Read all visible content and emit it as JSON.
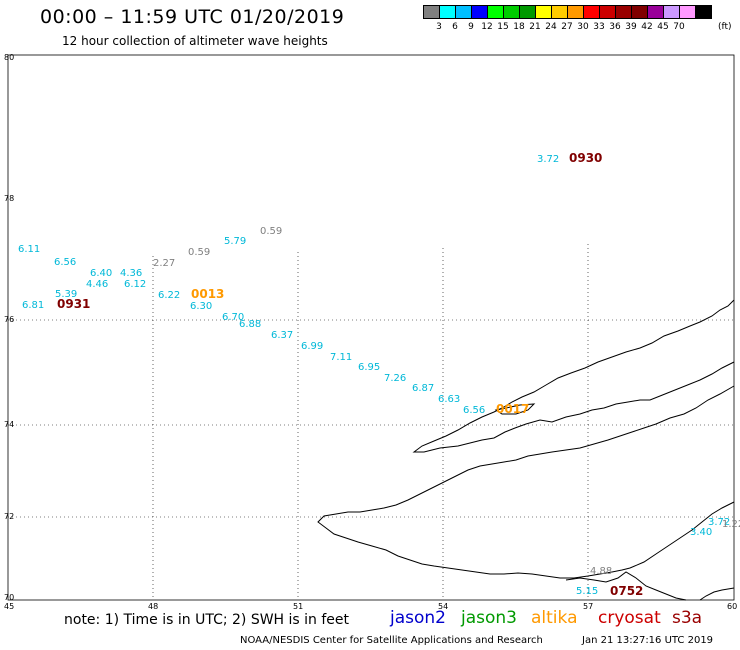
{
  "header": {
    "title": "00:00 – 11:59 UTC 01/20/2019",
    "subtitle": "12 hour collection of altimeter wave heights"
  },
  "color_scale": {
    "unit": "(ft)",
    "colors": [
      "#808080",
      "#00ffff",
      "#00bfff",
      "#0000ff",
      "#00ff00",
      "#00cc00",
      "#009900",
      "#ffff00",
      "#ffcc00",
      "#ff9900",
      "#ff0000",
      "#cc0000",
      "#990000",
      "#800000",
      "#990099",
      "#cc99ff",
      "#ff99ff",
      "#000000"
    ],
    "ticks": [
      "3",
      "6",
      "9",
      "12",
      "15",
      "18",
      "21",
      "24",
      "27",
      "30",
      "33",
      "36",
      "39",
      "42",
      "45",
      "70"
    ]
  },
  "axes": {
    "lat_labels": [
      "80",
      "78",
      "76",
      "74",
      "72",
      "70"
    ],
    "lon_labels": [
      "45",
      "48",
      "51",
      "54",
      "57",
      "60"
    ]
  },
  "observations": [
    {
      "text": "3.72",
      "color": "#00b8d8"
    },
    {
      "text": "0930",
      "color": "#800000"
    },
    {
      "text": "0.59",
      "color": "#808080"
    },
    {
      "text": "5.79",
      "color": "#00b8d8"
    },
    {
      "text": "0.59",
      "color": "#808080"
    },
    {
      "text": "6.11",
      "color": "#00b8d8"
    },
    {
      "text": "2.27",
      "color": "#808080"
    },
    {
      "text": "6.56",
      "color": "#00b8d8"
    },
    {
      "text": "6.40",
      "color": "#00b8d8"
    },
    {
      "text": "4.36",
      "color": "#00b8d8"
    },
    {
      "text": "4.46",
      "color": "#00b8d8"
    },
    {
      "text": "6.12",
      "color": "#00b8d8"
    },
    {
      "text": "5.39",
      "color": "#00b8d8"
    },
    {
      "text": "6.22",
      "color": "#00b8d8"
    },
    {
      "text": "0013",
      "color": "#ff9900"
    },
    {
      "text": "6.81",
      "color": "#00b8d8"
    },
    {
      "text": "0931",
      "color": "#800000"
    },
    {
      "text": "6.30",
      "color": "#00b8d8"
    },
    {
      "text": "6.70",
      "color": "#00b8d8"
    },
    {
      "text": "6.88",
      "color": "#00b8d8"
    },
    {
      "text": "6.37",
      "color": "#00b8d8"
    },
    {
      "text": "6.99",
      "color": "#00b8d8"
    },
    {
      "text": "7.11",
      "color": "#00b8d8"
    },
    {
      "text": "6.95",
      "color": "#00b8d8"
    },
    {
      "text": "7.26",
      "color": "#00b8d8"
    },
    {
      "text": "6.87",
      "color": "#00b8d8"
    },
    {
      "text": "6.63",
      "color": "#00b8d8"
    },
    {
      "text": "6.56",
      "color": "#00b8d8"
    },
    {
      "text": "0017",
      "color": "#ff9900"
    },
    {
      "text": "3.72",
      "color": "#00b8d8"
    },
    {
      "text": "3.40",
      "color": "#00b8d8"
    },
    {
      "text": "1.22",
      "color": "#808080"
    },
    {
      "text": "4.88",
      "color": "#808080"
    },
    {
      "text": "5.15",
      "color": "#00b8d8"
    },
    {
      "text": "0752",
      "color": "#800000"
    }
  ],
  "footer": {
    "note": "note:  1) Time is in UTC;  2) SWH is in feet",
    "satellites": [
      {
        "name": "jason2",
        "color": "#0000cc"
      },
      {
        "name": "jason3",
        "color": "#009900"
      },
      {
        "name": "altika",
        "color": "#ff9900"
      },
      {
        "name": "cryosat",
        "color": "#cc0000"
      },
      {
        "name": "s3a",
        "color": "#990000"
      }
    ],
    "credit": "NOAA/NESDIS Center for Satellite Applications and Research",
    "generated": "Jan 21 13:27:16 UTC 2019"
  }
}
